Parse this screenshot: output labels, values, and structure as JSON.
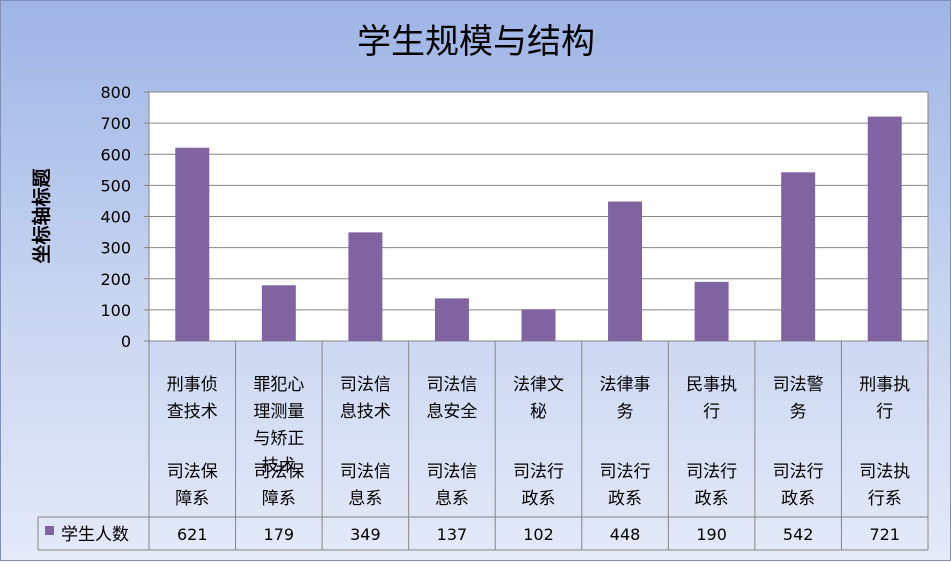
{
  "chart_data": {
    "type": "bar",
    "title": "学生规模与结构",
    "xlabel": "",
    "ylabel": "坐标轴标题",
    "ylim": [
      0,
      800
    ],
    "yticks": [
      0,
      100,
      200,
      300,
      400,
      500,
      600,
      700,
      800
    ],
    "grid": true,
    "legend": "bottom-left (data table)",
    "categories": [
      {
        "major": [
          "刑事侦",
          "查技术"
        ],
        "minor": [
          "司法保",
          "障系"
        ]
      },
      {
        "major": [
          "罪犯心",
          "理测量",
          "与矫正",
          "技术"
        ],
        "minor": [
          "司法保",
          "障系"
        ]
      },
      {
        "major": [
          "司法信",
          "息技术"
        ],
        "minor": [
          "司法信",
          "息系"
        ]
      },
      {
        "major": [
          "司法信",
          "息安全"
        ],
        "minor": [
          "司法信",
          "息系"
        ]
      },
      {
        "major": [
          "法律文",
          "秘"
        ],
        "minor": [
          "司法行",
          "政系"
        ]
      },
      {
        "major": [
          "法律事",
          "务"
        ],
        "minor": [
          "司法行",
          "政系"
        ]
      },
      {
        "major": [
          "民事执",
          "行"
        ],
        "minor": [
          "司法行",
          "政系"
        ]
      },
      {
        "major": [
          "司法警",
          "务"
        ],
        "minor": [
          "司法行",
          "政系"
        ]
      },
      {
        "major": [
          "刑事执",
          "行"
        ],
        "minor": [
          "司法执",
          "行系"
        ]
      }
    ],
    "series": [
      {
        "name": "学生人数",
        "color": "#8064a2",
        "values": [
          621,
          179,
          349,
          137,
          102,
          448,
          190,
          542,
          721
        ]
      }
    ]
  }
}
